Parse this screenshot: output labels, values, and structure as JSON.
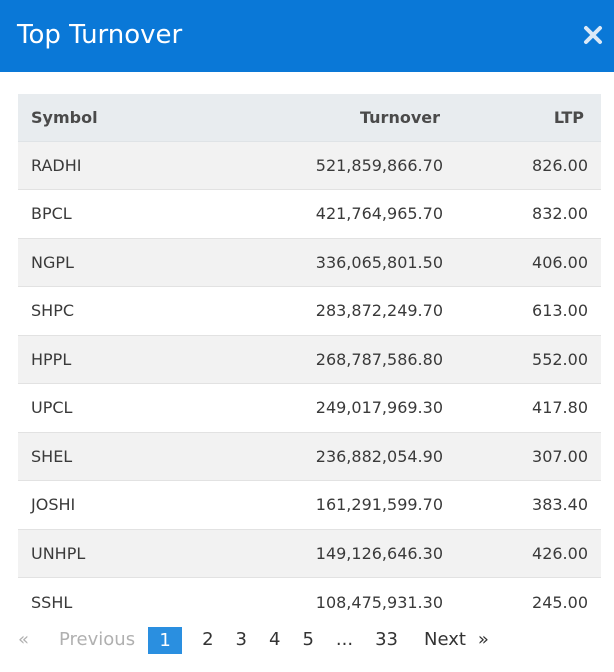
{
  "header": {
    "title": "Top Turnover",
    "close_icon": "close-icon",
    "background": "#0a78d7"
  },
  "table": {
    "columns": [
      "Symbol",
      "Turnover",
      "LTP"
    ],
    "rows": [
      {
        "symbol": "RADHI",
        "turnover": "521,859,866.70",
        "ltp": "826.00"
      },
      {
        "symbol": "BPCL",
        "turnover": "421,764,965.70",
        "ltp": "832.00"
      },
      {
        "symbol": "NGPL",
        "turnover": "336,065,801.50",
        "ltp": "406.00"
      },
      {
        "symbol": "SHPC",
        "turnover": "283,872,249.70",
        "ltp": "613.00"
      },
      {
        "symbol": "HPPL",
        "turnover": "268,787,586.80",
        "ltp": "552.00"
      },
      {
        "symbol": "UPCL",
        "turnover": "249,017,969.30",
        "ltp": "417.80"
      },
      {
        "symbol": "SHEL",
        "turnover": "236,882,054.90",
        "ltp": "307.00"
      },
      {
        "symbol": "JOSHI",
        "turnover": "161,291,599.70",
        "ltp": "383.40"
      },
      {
        "symbol": "UNHPL",
        "turnover": "149,126,646.30",
        "ltp": "426.00"
      },
      {
        "symbol": "SSHL",
        "turnover": "108,475,931.30",
        "ltp": "245.00"
      }
    ]
  },
  "pagination": {
    "prev_arrow": "«",
    "prev_label": "Previous",
    "pages": [
      "1",
      "2",
      "3",
      "4",
      "5"
    ],
    "active_page": "1",
    "ellipsis": "...",
    "last_page": "33",
    "next_label": "Next",
    "next_arrow": "»",
    "active_color": "#2a8fe0"
  }
}
